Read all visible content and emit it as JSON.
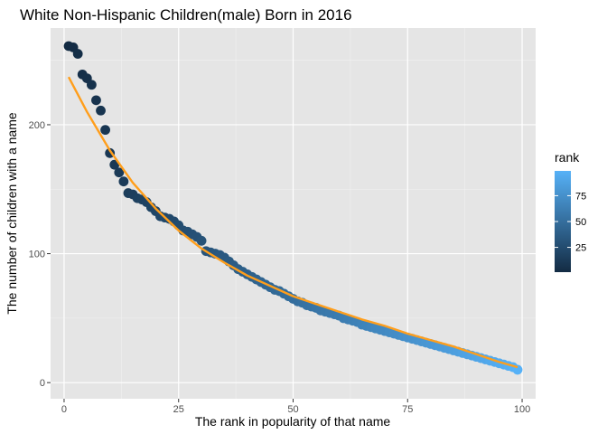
{
  "chart_data": {
    "type": "scatter",
    "title": "White Non-Hispanic Children(male) Born in 2016",
    "xlabel": "The rank in popularity of that name",
    "ylabel": "The number of children with a name",
    "xlim": [
      -2.95,
      102.95
    ],
    "ylim": [
      -12.5,
      275
    ],
    "x_ticks": [
      0,
      25,
      50,
      75,
      100
    ],
    "x_tick_labels": [
      "0",
      "25",
      "50",
      "75",
      "100"
    ],
    "y_ticks": [
      0,
      100,
      200
    ],
    "y_tick_labels": [
      "0",
      "100",
      "200"
    ],
    "grid": true,
    "panel_background": "#e5e5e5",
    "series": [
      {
        "type": "scatter",
        "color_mapped_to": "rank",
        "x": [
          1,
          2,
          3,
          4,
          5,
          6,
          7,
          8,
          9,
          10,
          11,
          12,
          13,
          14,
          15,
          16,
          17,
          18,
          19,
          20,
          21,
          22,
          23,
          24,
          25,
          26,
          27,
          28,
          29,
          30,
          31,
          32,
          33,
          34,
          35,
          36,
          37,
          38,
          39,
          40,
          41,
          42,
          43,
          44,
          45,
          46,
          47,
          48,
          49,
          50,
          51,
          52,
          53,
          54,
          55,
          56,
          57,
          58,
          59,
          60,
          61,
          62,
          63,
          64,
          65,
          66,
          67,
          68,
          69,
          70,
          71,
          72,
          73,
          74,
          75,
          76,
          77,
          78,
          79,
          80,
          81,
          82,
          83,
          84,
          85,
          86,
          87,
          88,
          89,
          90,
          91,
          92,
          93,
          94,
          95,
          96,
          97,
          98,
          99
        ],
        "y": [
          261,
          260,
          255,
          239,
          236,
          231,
          219,
          211,
          196,
          178,
          169,
          163,
          156,
          147,
          146,
          143,
          142,
          140,
          136,
          133,
          129,
          128,
          127,
          125,
          122,
          118,
          117,
          115,
          113,
          110,
          102,
          101,
          100,
          99,
          97,
          94,
          91,
          88,
          86,
          84,
          82,
          80,
          78,
          76,
          74,
          72,
          71,
          69,
          67,
          65,
          63,
          62,
          60,
          59,
          58,
          56,
          55,
          54,
          53,
          52,
          50,
          49,
          48,
          47,
          45,
          44,
          43,
          42,
          41,
          40,
          39,
          38,
          37,
          36,
          35,
          34,
          33,
          32,
          31,
          30,
          29,
          28,
          27,
          26,
          25,
          24,
          23,
          22,
          21,
          20,
          19,
          18,
          17,
          16,
          15,
          14,
          13,
          12,
          10
        ]
      },
      {
        "type": "line",
        "color": "#ff9e1b",
        "x": [
          1,
          5,
          10,
          15,
          20,
          25,
          30,
          35,
          40,
          45,
          50,
          55,
          60,
          65,
          70,
          75,
          80,
          85,
          90,
          95,
          99
        ],
        "y": [
          237,
          210,
          180,
          155,
          135,
          118,
          104,
          93,
          83,
          75,
          67,
          61,
          55,
          49,
          44,
          38,
          33,
          28,
          22,
          16,
          12
        ]
      }
    ],
    "legend": {
      "title": "rank",
      "placement": "right",
      "type": "colorbar",
      "low_color": "#132b43",
      "high_color": "#56b1f7",
      "range": [
        1,
        99
      ],
      "breaks": [
        25,
        50,
        75
      ],
      "break_labels": [
        "25",
        "50",
        "75"
      ]
    }
  }
}
